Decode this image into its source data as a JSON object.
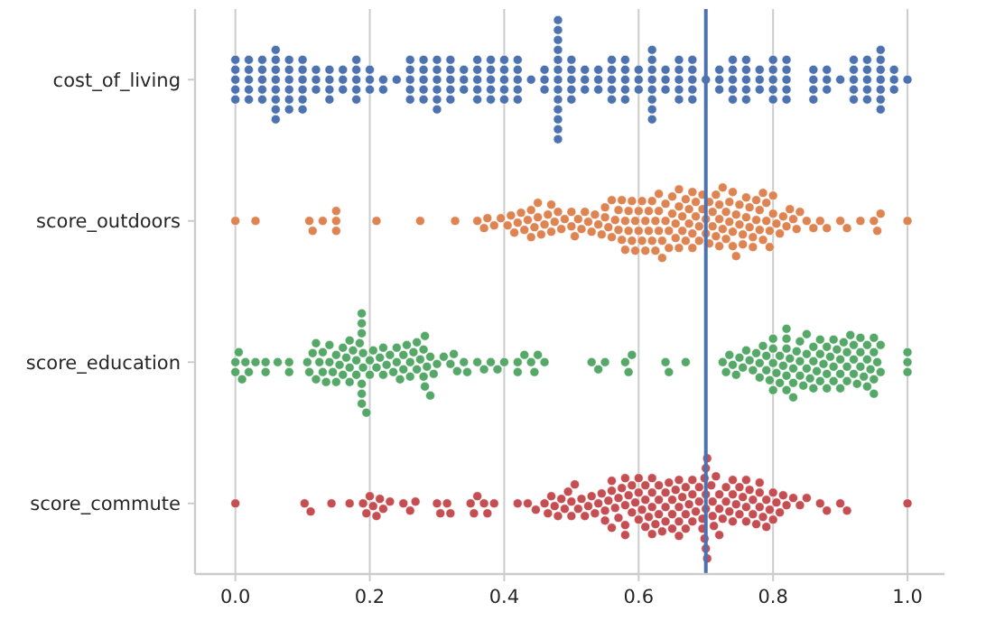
{
  "chart_data": {
    "type": "scatter",
    "orientation": "horizontal",
    "categories": [
      "cost_of_living",
      "score_outdoors",
      "score_education",
      "score_commute"
    ],
    "xlim": [
      -0.06,
      1.055
    ],
    "xticks": [
      {
        "value": 0,
        "label": "0.0"
      },
      {
        "value": 0.2,
        "label": "0.2"
      },
      {
        "value": 0.4,
        "label": "0.4"
      },
      {
        "value": 0.6,
        "label": "0.6"
      },
      {
        "value": 0.8,
        "label": "0.8"
      },
      {
        "value": 1,
        "label": "1.0"
      }
    ],
    "grid": "x",
    "marker": "circle",
    "ref_lines": [
      {
        "axis": "x",
        "value": 0.7,
        "color": "#4c72b0"
      }
    ],
    "series": [
      {
        "color": "#4c72b0",
        "x": [
          "cost_of_living",
          "cost_of_living",
          "cost_of_living",
          "cost_of_living",
          "cost_of_living",
          "cost_of_living",
          "cost_of_living",
          "cost_of_living",
          "cost_of_living",
          "cost_of_living",
          "cost_of_living",
          "cost_of_living",
          "cost_of_living",
          "cost_of_living",
          "cost_of_living",
          "cost_of_living",
          "cost_of_living",
          "cost_of_living",
          "cost_of_living",
          "cost_of_living",
          "cost_of_living",
          "cost_of_living",
          "cost_of_living",
          "cost_of_living",
          "cost_of_living",
          "cost_of_living",
          "cost_of_living",
          "cost_of_living",
          "cost_of_living",
          "cost_of_living",
          "cost_of_living",
          "cost_of_living",
          "cost_of_living",
          "cost_of_living",
          "cost_of_living",
          "cost_of_living",
          "cost_of_living",
          "cost_of_living",
          "cost_of_living",
          "cost_of_living",
          "cost_of_living",
          "cost_of_living",
          "cost_of_living",
          "cost_of_living",
          "cost_of_living",
          "cost_of_living",
          "cost_of_living",
          "cost_of_living",
          "cost_of_living",
          "cost_of_living",
          "cost_of_living",
          "cost_of_living",
          "cost_of_living",
          "cost_of_living",
          "cost_of_living",
          "cost_of_living",
          "cost_of_living",
          "cost_of_living",
          "cost_of_living",
          "cost_of_living",
          "cost_of_living",
          "cost_of_living",
          "cost_of_living",
          "cost_of_living",
          "cost_of_living",
          "cost_of_living",
          "cost_of_living",
          "cost_of_living",
          "cost_of_living",
          "cost_of_living",
          "cost_of_living",
          "cost_of_living",
          "cost_of_living",
          "cost_of_living",
          "cost_of_living",
          "cost_of_living",
          "cost_of_living",
          "cost_of_living",
          "cost_of_living",
          "cost_of_living",
          "cost_of_living",
          "cost_of_living",
          "cost_of_living",
          "cost_of_living",
          "cost_of_living",
          "cost_of_living",
          "cost_of_living",
          "cost_of_living",
          "cost_of_living",
          "cost_of_living",
          "cost_of_living",
          "cost_of_living",
          "cost_of_living",
          "cost_of_living",
          "cost_of_living",
          "cost_of_living",
          "cost_of_living",
          "cost_of_living",
          "cost_of_living",
          "cost_of_living",
          "cost_of_living",
          "cost_of_living",
          "cost_of_living",
          "cost_of_living",
          "cost_of_living",
          "cost_of_living",
          "cost_of_living",
          "cost_of_living",
          "cost_of_living",
          "cost_of_living",
          "cost_of_living",
          "cost_of_living",
          "cost_of_living",
          "cost_of_living",
          "cost_of_living",
          "cost_of_living",
          "cost_of_living",
          "cost_of_living",
          "cost_of_living",
          "cost_of_living",
          "cost_of_living",
          "cost_of_living",
          "cost_of_living",
          "cost_of_living",
          "cost_of_living",
          "cost_of_living",
          "cost_of_living",
          "cost_of_living",
          "cost_of_living",
          "cost_of_living",
          "cost_of_living",
          "cost_of_living",
          "cost_of_living",
          "cost_of_living",
          "cost_of_living",
          "cost_of_living",
          "cost_of_living",
          "cost_of_living",
          "cost_of_living",
          "cost_of_living",
          "cost_of_living",
          "cost_of_living",
          "cost_of_living",
          "cost_of_living",
          "cost_of_living",
          "cost_of_living",
          "cost_of_living",
          "cost_of_living",
          "cost_of_living",
          "cost_of_living",
          "cost_of_living",
          "cost_of_living",
          "cost_of_living",
          "cost_of_living",
          "cost_of_living",
          "cost_of_living",
          "cost_of_living",
          "cost_of_living",
          "cost_of_living",
          "cost_of_living",
          "cost_of_living",
          "cost_of_living",
          "cost_of_living",
          "cost_of_living",
          "cost_of_living",
          "cost_of_living",
          "cost_of_living",
          "cost_of_living",
          "cost_of_living",
          "cost_of_living",
          "cost_of_living",
          "cost_of_living",
          "cost_of_living",
          "cost_of_living",
          "cost_of_living",
          "cost_of_living",
          "cost_of_living",
          "cost_of_living",
          "cost_of_living",
          "cost_of_living",
          "cost_of_living",
          "cost_of_living",
          "cost_of_living",
          "cost_of_living",
          "cost_of_living",
          "cost_of_living",
          "cost_of_living",
          "cost_of_living",
          "cost_of_living",
          "cost_of_living",
          "cost_of_living",
          "cost_of_living",
          "cost_of_living",
          "cost_of_living",
          "cost_of_living",
          "cost_of_living",
          "cost_of_living",
          "cost_of_living",
          "cost_of_living",
          "cost_of_living",
          "cost_of_living",
          "cost_of_living",
          "cost_of_living",
          "cost_of_living",
          "cost_of_living",
          "cost_of_living",
          "cost_of_living",
          "cost_of_living",
          "cost_of_living",
          "cost_of_living",
          "cost_of_living",
          "cost_of_living",
          "cost_of_living",
          "cost_of_living",
          "cost_of_living",
          "cost_of_living",
          "cost_of_living",
          "cost_of_living"
        ],
        "values": [
          0,
          0,
          0,
          0,
          0,
          0.02,
          0.02,
          0.02,
          0.02,
          0.04,
          0.04,
          0.04,
          0.04,
          0.04,
          0.06,
          0.06,
          0.06,
          0.06,
          0.06,
          0.06,
          0.06,
          0.06,
          0.08,
          0.08,
          0.08,
          0.08,
          0.08,
          0.08,
          0.1,
          0.1,
          0.1,
          0.1,
          0.1,
          0.12,
          0.12,
          0.12,
          0.14,
          0.14,
          0.14,
          0.16,
          0.16,
          0.16,
          0.18,
          0.18,
          0.18,
          0.18,
          0.18,
          0.2,
          0.2,
          0.2,
          0.22,
          0.22,
          0.24,
          0.26,
          0.26,
          0.26,
          0.26,
          0.26,
          0.28,
          0.28,
          0.28,
          0.28,
          0.28,
          0.3,
          0.3,
          0.3,
          0.3,
          0.3,
          0.3,
          0.32,
          0.32,
          0.32,
          0.32,
          0.32,
          0.34,
          0.34,
          0.34,
          0.36,
          0.36,
          0.36,
          0.36,
          0.36,
          0.38,
          0.38,
          0.38,
          0.38,
          0.38,
          0.4,
          0.4,
          0.4,
          0.4,
          0.4,
          0.42,
          0.42,
          0.42,
          0.42,
          0.42,
          0.44,
          0.46,
          0.46,
          0.46,
          0.48,
          0.48,
          0.48,
          0.48,
          0.48,
          0.48,
          0.48,
          0.48,
          0.48,
          0.48,
          0.48,
          0.48,
          0.48,
          0.5,
          0.5,
          0.5,
          0.5,
          0.5,
          0.52,
          0.52,
          0.52,
          0.54,
          0.54,
          0.54,
          0.56,
          0.56,
          0.56,
          0.56,
          0.56,
          0.58,
          0.58,
          0.58,
          0.58,
          0.58,
          0.6,
          0.6,
          0.6,
          0.62,
          0.62,
          0.62,
          0.62,
          0.62,
          0.62,
          0.62,
          0.62,
          0.64,
          0.64,
          0.64,
          0.66,
          0.66,
          0.66,
          0.66,
          0.66,
          0.68,
          0.68,
          0.68,
          0.68,
          0.68,
          0.7,
          0.72,
          0.72,
          0.72,
          0.74,
          0.74,
          0.74,
          0.74,
          0.74,
          0.76,
          0.76,
          0.76,
          0.76,
          0.76,
          0.78,
          0.78,
          0.78,
          0.8,
          0.8,
          0.8,
          0.8,
          0.8,
          0.82,
          0.82,
          0.82,
          0.82,
          0.82,
          0.86,
          0.86,
          0.86,
          0.88,
          0.88,
          0.88,
          0.9,
          0.92,
          0.92,
          0.92,
          0.92,
          0.92,
          0.94,
          0.94,
          0.94,
          0.94,
          0.94,
          0.96,
          0.96,
          0.96,
          0.96,
          0.96,
          0.96,
          0.96,
          0.98,
          0.98,
          0.98,
          1,
          0.02,
          0.1,
          0.14,
          0.86
        ]
      },
      {
        "color": "#dd8452",
        "x": [
          "score_outdoors",
          "score_outdoors",
          "score_outdoors",
          "score_outdoors",
          "score_outdoors",
          "score_outdoors",
          "score_outdoors",
          "score_outdoors",
          "score_outdoors",
          "score_outdoors",
          "score_outdoors",
          "score_outdoors",
          "score_outdoors",
          "score_outdoors",
          "score_outdoors",
          "score_outdoors",
          "score_outdoors",
          "score_outdoors",
          "score_outdoors",
          "score_outdoors",
          "score_outdoors",
          "score_outdoors",
          "score_outdoors",
          "score_outdoors",
          "score_outdoors",
          "score_outdoors",
          "score_outdoors",
          "score_outdoors",
          "score_outdoors",
          "score_outdoors",
          "score_outdoors",
          "score_outdoors",
          "score_outdoors",
          "score_outdoors",
          "score_outdoors",
          "score_outdoors",
          "score_outdoors",
          "score_outdoors",
          "score_outdoors",
          "score_outdoors",
          "score_outdoors",
          "score_outdoors",
          "score_outdoors",
          "score_outdoors",
          "score_outdoors",
          "score_outdoors",
          "score_outdoors",
          "score_outdoors",
          "score_outdoors",
          "score_outdoors",
          "score_outdoors",
          "score_outdoors",
          "score_outdoors",
          "score_outdoors",
          "score_outdoors",
          "score_outdoors",
          "score_outdoors",
          "score_outdoors",
          "score_outdoors",
          "score_outdoors",
          "score_outdoors",
          "score_outdoors",
          "score_outdoors",
          "score_outdoors",
          "score_outdoors",
          "score_outdoors",
          "score_outdoors",
          "score_outdoors",
          "score_outdoors",
          "score_outdoors",
          "score_outdoors",
          "score_outdoors",
          "score_outdoors",
          "score_outdoors",
          "score_outdoors",
          "score_outdoors",
          "score_outdoors",
          "score_outdoors",
          "score_outdoors",
          "score_outdoors",
          "score_outdoors",
          "score_outdoors",
          "score_outdoors",
          "score_outdoors",
          "score_outdoors",
          "score_outdoors",
          "score_outdoors",
          "score_outdoors",
          "score_outdoors",
          "score_outdoors",
          "score_outdoors",
          "score_outdoors",
          "score_outdoors",
          "score_outdoors",
          "score_outdoors",
          "score_outdoors",
          "score_outdoors",
          "score_outdoors",
          "score_outdoors",
          "score_outdoors",
          "score_outdoors",
          "score_outdoors",
          "score_outdoors",
          "score_outdoors",
          "score_outdoors",
          "score_outdoors",
          "score_outdoors",
          "score_outdoors",
          "score_outdoors",
          "score_outdoors",
          "score_outdoors",
          "score_outdoors",
          "score_outdoors",
          "score_outdoors",
          "score_outdoors",
          "score_outdoors",
          "score_outdoors",
          "score_outdoors",
          "score_outdoors",
          "score_outdoors",
          "score_outdoors",
          "score_outdoors",
          "score_outdoors",
          "score_outdoors",
          "score_outdoors",
          "score_outdoors",
          "score_outdoors",
          "score_outdoors",
          "score_outdoors",
          "score_outdoors",
          "score_outdoors",
          "score_outdoors",
          "score_outdoors",
          "score_outdoors",
          "score_outdoors",
          "score_outdoors",
          "score_outdoors",
          "score_outdoors",
          "score_outdoors",
          "score_outdoors",
          "score_outdoors",
          "score_outdoors",
          "score_outdoors",
          "score_outdoors",
          "score_outdoors",
          "score_outdoors",
          "score_outdoors",
          "score_outdoors",
          "score_outdoors",
          "score_outdoors",
          "score_outdoors",
          "score_outdoors",
          "score_outdoors",
          "score_outdoors",
          "score_outdoors",
          "score_outdoors",
          "score_outdoors",
          "score_outdoors",
          "score_outdoors",
          "score_outdoors",
          "score_outdoors",
          "score_outdoors",
          "score_outdoors",
          "score_outdoors",
          "score_outdoors",
          "score_outdoors",
          "score_outdoors",
          "score_outdoors",
          "score_outdoors",
          "score_outdoors",
          "score_outdoors",
          "score_outdoors"
        ],
        "values": [
          0,
          0.03,
          0.11,
          0.115,
          0.13,
          0.15,
          0.15,
          0.15,
          0.21,
          0.275,
          0.327,
          0.36,
          0.37,
          0.375,
          0.385,
          0.395,
          0.405,
          0.41,
          0.415,
          0.42,
          0.425,
          0.43,
          0.435,
          0.44,
          0.44,
          0.445,
          0.45,
          0.45,
          0.455,
          0.46,
          0.465,
          0.47,
          0.47,
          0.475,
          0.48,
          0.485,
          0.49,
          0.5,
          0.5,
          0.505,
          0.51,
          0.515,
          0.52,
          0.525,
          0.53,
          0.535,
          0.54,
          0.545,
          0.55,
          0.55,
          0.555,
          0.56,
          0.56,
          0.565,
          0.57,
          0.57,
          0.575,
          0.58,
          0.58,
          0.585,
          0.59,
          0.59,
          0.595,
          0.6,
          0.6,
          0.605,
          0.61,
          0.61,
          0.615,
          0.62,
          0.62,
          0.625,
          0.63,
          0.63,
          0.635,
          0.64,
          0.64,
          0.645,
          0.65,
          0.65,
          0.655,
          0.66,
          0.66,
          0.665,
          0.67,
          0.67,
          0.675,
          0.68,
          0.68,
          0.685,
          0.69,
          0.69,
          0.695,
          0.7,
          0.7,
          0.705,
          0.71,
          0.71,
          0.715,
          0.72,
          0.72,
          0.725,
          0.73,
          0.73,
          0.735,
          0.74,
          0.74,
          0.745,
          0.75,
          0.75,
          0.755,
          0.76,
          0.76,
          0.765,
          0.77,
          0.77,
          0.775,
          0.78,
          0.78,
          0.785,
          0.79,
          0.79,
          0.795,
          0.8,
          0.8,
          0.805,
          0.81,
          0.815,
          0.82,
          0.825,
          0.83,
          0.835,
          0.84,
          0.85,
          0.86,
          0.87,
          0.88,
          0.9,
          0.91,
          0.93,
          0.95,
          0.955,
          0.96,
          1,
          0.575,
          0.585,
          0.595,
          0.605,
          0.615,
          0.625,
          0.635,
          0.645,
          0.655,
          0.665,
          0.675,
          0.685,
          0.695,
          0.705,
          0.715,
          0.725,
          0.735,
          0.745,
          0.755,
          0.765,
          0.775,
          0.785,
          0.795,
          0.63,
          0.66,
          0.68,
          0.72,
          0.74
        ]
      },
      {
        "color": "#55a868",
        "x": [
          "score_education",
          "score_education",
          "score_education",
          "score_education",
          "score_education",
          "score_education",
          "score_education",
          "score_education",
          "score_education",
          "score_education",
          "score_education",
          "score_education",
          "score_education",
          "score_education",
          "score_education",
          "score_education",
          "score_education",
          "score_education",
          "score_education",
          "score_education",
          "score_education",
          "score_education",
          "score_education",
          "score_education",
          "score_education",
          "score_education",
          "score_education",
          "score_education",
          "score_education",
          "score_education",
          "score_education",
          "score_education",
          "score_education",
          "score_education",
          "score_education",
          "score_education",
          "score_education",
          "score_education",
          "score_education",
          "score_education",
          "score_education",
          "score_education",
          "score_education",
          "score_education",
          "score_education",
          "score_education",
          "score_education",
          "score_education",
          "score_education",
          "score_education",
          "score_education",
          "score_education",
          "score_education",
          "score_education",
          "score_education",
          "score_education",
          "score_education",
          "score_education",
          "score_education",
          "score_education",
          "score_education",
          "score_education",
          "score_education",
          "score_education",
          "score_education",
          "score_education",
          "score_education",
          "score_education",
          "score_education",
          "score_education",
          "score_education",
          "score_education",
          "score_education",
          "score_education",
          "score_education",
          "score_education",
          "score_education",
          "score_education",
          "score_education",
          "score_education",
          "score_education",
          "score_education",
          "score_education",
          "score_education",
          "score_education",
          "score_education",
          "score_education",
          "score_education",
          "score_education",
          "score_education",
          "score_education",
          "score_education",
          "score_education",
          "score_education",
          "score_education",
          "score_education",
          "score_education",
          "score_education",
          "score_education",
          "score_education",
          "score_education",
          "score_education",
          "score_education",
          "score_education",
          "score_education",
          "score_education",
          "score_education",
          "score_education",
          "score_education",
          "score_education",
          "score_education",
          "score_education",
          "score_education",
          "score_education",
          "score_education",
          "score_education",
          "score_education",
          "score_education",
          "score_education",
          "score_education",
          "score_education",
          "score_education",
          "score_education",
          "score_education",
          "score_education",
          "score_education",
          "score_education",
          "score_education",
          "score_education",
          "score_education",
          "score_education",
          "score_education",
          "score_education",
          "score_education",
          "score_education",
          "score_education",
          "score_education",
          "score_education",
          "score_education",
          "score_education",
          "score_education",
          "score_education",
          "score_education",
          "score_education",
          "score_education",
          "score_education",
          "score_education",
          "score_education",
          "score_education",
          "score_education",
          "score_education",
          "score_education",
          "score_education",
          "score_education",
          "score_education",
          "score_education",
          "score_education",
          "score_education",
          "score_education",
          "score_education",
          "score_education",
          "score_education",
          "score_education",
          "score_education",
          "score_education",
          "score_education",
          "score_education",
          "score_education",
          "score_education",
          "score_education",
          "score_education",
          "score_education",
          "score_education",
          "score_education",
          "score_education",
          "score_education",
          "score_education",
          "score_education",
          "score_education",
          "score_education",
          "score_education",
          "score_education",
          "score_education",
          "score_education",
          "score_education",
          "score_education",
          "score_education",
          "score_education",
          "score_education",
          "score_education",
          "score_education",
          "score_education",
          "score_education"
        ],
        "values": [
          0,
          0,
          0.005,
          0.01,
          0.015,
          0.02,
          0.03,
          0.045,
          0.045,
          0.063,
          0.08,
          0.08,
          0.107,
          0.11,
          0.115,
          0.12,
          0.12,
          0.125,
          0.13,
          0.13,
          0.135,
          0.14,
          0.14,
          0.145,
          0.15,
          0.15,
          0.155,
          0.16,
          0.16,
          0.165,
          0.17,
          0.17,
          0.175,
          0.18,
          0.18,
          0.185,
          0.188,
          0.188,
          0.188,
          0.188,
          0.188,
          0.188,
          0.19,
          0.19,
          0.195,
          0.2,
          0.2,
          0.205,
          0.21,
          0.215,
          0.22,
          0.225,
          0.23,
          0.235,
          0.24,
          0.24,
          0.245,
          0.25,
          0.25,
          0.255,
          0.26,
          0.26,
          0.265,
          0.27,
          0.27,
          0.275,
          0.28,
          0.28,
          0.282,
          0.282,
          0.285,
          0.29,
          0.29,
          0.295,
          0.3,
          0.31,
          0.32,
          0.325,
          0.33,
          0.34,
          0.345,
          0.36,
          0.37,
          0.38,
          0.39,
          0.4,
          0.42,
          0.42,
          0.43,
          0.44,
          0.445,
          0.45,
          0.46,
          0.53,
          0.54,
          0.55,
          0.58,
          0.585,
          0.59,
          0.64,
          0.645,
          0.67,
          0.725,
          0.73,
          0.735,
          0.74,
          0.745,
          0.75,
          0.755,
          0.76,
          0.765,
          0.77,
          0.775,
          0.78,
          0.785,
          0.79,
          0.79,
          0.795,
          0.8,
          0.8,
          0.805,
          0.81,
          0.81,
          0.815,
          0.82,
          0.82,
          0.82,
          0.82,
          0.825,
          0.83,
          0.83,
          0.835,
          0.84,
          0.84,
          0.845,
          0.85,
          0.85,
          0.855,
          0.86,
          0.86,
          0.865,
          0.87,
          0.87,
          0.875,
          0.88,
          0.88,
          0.885,
          0.89,
          0.89,
          0.895,
          0.9,
          0.9,
          0.905,
          0.91,
          0.91,
          0.915,
          0.92,
          0.92,
          0.925,
          0.93,
          0.93,
          0.935,
          0.94,
          0.94,
          0.945,
          0.95,
          0.95,
          0.95,
          0.95,
          0.955,
          0.96,
          0.96,
          1,
          1,
          1,
          0.78,
          0.8,
          0.83,
          0.86,
          0.88,
          0.9,
          0.92,
          0.94,
          0.8,
          0.85,
          0.87,
          0.82,
          0.84,
          0.89,
          0.91,
          0.93,
          0.17,
          0.22
        ]
      },
      {
        "color": "#c44e52",
        "x": [
          "score_commute",
          "score_commute",
          "score_commute",
          "score_commute",
          "score_commute",
          "score_commute",
          "score_commute",
          "score_commute",
          "score_commute",
          "score_commute",
          "score_commute",
          "score_commute",
          "score_commute",
          "score_commute",
          "score_commute",
          "score_commute",
          "score_commute",
          "score_commute",
          "score_commute",
          "score_commute",
          "score_commute",
          "score_commute",
          "score_commute",
          "score_commute",
          "score_commute",
          "score_commute",
          "score_commute",
          "score_commute",
          "score_commute",
          "score_commute",
          "score_commute",
          "score_commute",
          "score_commute",
          "score_commute",
          "score_commute",
          "score_commute",
          "score_commute",
          "score_commute",
          "score_commute",
          "score_commute",
          "score_commute",
          "score_commute",
          "score_commute",
          "score_commute",
          "score_commute",
          "score_commute",
          "score_commute",
          "score_commute",
          "score_commute",
          "score_commute",
          "score_commute",
          "score_commute",
          "score_commute",
          "score_commute",
          "score_commute",
          "score_commute",
          "score_commute",
          "score_commute",
          "score_commute",
          "score_commute",
          "score_commute",
          "score_commute",
          "score_commute",
          "score_commute",
          "score_commute",
          "score_commute",
          "score_commute",
          "score_commute",
          "score_commute",
          "score_commute",
          "score_commute",
          "score_commute",
          "score_commute",
          "score_commute",
          "score_commute",
          "score_commute",
          "score_commute",
          "score_commute",
          "score_commute",
          "score_commute",
          "score_commute",
          "score_commute",
          "score_commute",
          "score_commute",
          "score_commute",
          "score_commute",
          "score_commute",
          "score_commute",
          "score_commute",
          "score_commute",
          "score_commute",
          "score_commute",
          "score_commute",
          "score_commute",
          "score_commute",
          "score_commute",
          "score_commute",
          "score_commute",
          "score_commute",
          "score_commute",
          "score_commute",
          "score_commute",
          "score_commute",
          "score_commute",
          "score_commute",
          "score_commute",
          "score_commute",
          "score_commute",
          "score_commute",
          "score_commute",
          "score_commute",
          "score_commute",
          "score_commute",
          "score_commute",
          "score_commute",
          "score_commute",
          "score_commute",
          "score_commute",
          "score_commute",
          "score_commute",
          "score_commute",
          "score_commute",
          "score_commute",
          "score_commute",
          "score_commute",
          "score_commute",
          "score_commute",
          "score_commute",
          "score_commute",
          "score_commute",
          "score_commute",
          "score_commute",
          "score_commute",
          "score_commute",
          "score_commute",
          "score_commute",
          "score_commute",
          "score_commute",
          "score_commute",
          "score_commute",
          "score_commute",
          "score_commute",
          "score_commute",
          "score_commute",
          "score_commute",
          "score_commute",
          "score_commute",
          "score_commute",
          "score_commute",
          "score_commute",
          "score_commute",
          "score_commute",
          "score_commute",
          "score_commute",
          "score_commute",
          "score_commute",
          "score_commute",
          "score_commute",
          "score_commute",
          "score_commute",
          "score_commute",
          "score_commute",
          "score_commute"
        ],
        "values": [
          0,
          0.103,
          0.112,
          0.143,
          0.17,
          0.19,
          0.195,
          0.2,
          0.205,
          0.21,
          0.215,
          0.22,
          0.23,
          0.25,
          0.26,
          0.268,
          0.3,
          0.305,
          0.315,
          0.32,
          0.35,
          0.355,
          0.36,
          0.37,
          0.375,
          0.385,
          0.42,
          0.435,
          0.447,
          0.46,
          0.465,
          0.47,
          0.475,
          0.48,
          0.485,
          0.49,
          0.495,
          0.5,
          0.5,
          0.505,
          0.51,
          0.515,
          0.52,
          0.525,
          0.53,
          0.535,
          0.54,
          0.545,
          0.55,
          0.55,
          0.555,
          0.56,
          0.56,
          0.565,
          0.57,
          0.57,
          0.575,
          0.58,
          0.58,
          0.585,
          0.59,
          0.59,
          0.595,
          0.6,
          0.6,
          0.605,
          0.61,
          0.61,
          0.615,
          0.62,
          0.62,
          0.625,
          0.63,
          0.63,
          0.635,
          0.64,
          0.64,
          0.645,
          0.65,
          0.65,
          0.655,
          0.66,
          0.66,
          0.665,
          0.67,
          0.67,
          0.675,
          0.68,
          0.68,
          0.685,
          0.69,
          0.69,
          0.695,
          0.695,
          0.698,
          0.698,
          0.7,
          0.7,
          0.7,
          0.7,
          0.702,
          0.702,
          0.708,
          0.712,
          0.71,
          0.71,
          0.715,
          0.72,
          0.72,
          0.725,
          0.73,
          0.73,
          0.735,
          0.74,
          0.74,
          0.745,
          0.75,
          0.75,
          0.755,
          0.76,
          0.76,
          0.765,
          0.77,
          0.77,
          0.775,
          0.78,
          0.78,
          0.785,
          0.79,
          0.79,
          0.795,
          0.8,
          0.8,
          0.805,
          0.81,
          0.815,
          0.82,
          0.83,
          0.84,
          0.85,
          0.87,
          0.88,
          0.9,
          0.91,
          1,
          0.56,
          0.58,
          0.6,
          0.62,
          0.64,
          0.66,
          0.68,
          0.58,
          0.61,
          0.63,
          0.65,
          0.67,
          0.72,
          0.74,
          0.76,
          0.78,
          0.62,
          0.66
        ]
      }
    ]
  }
}
